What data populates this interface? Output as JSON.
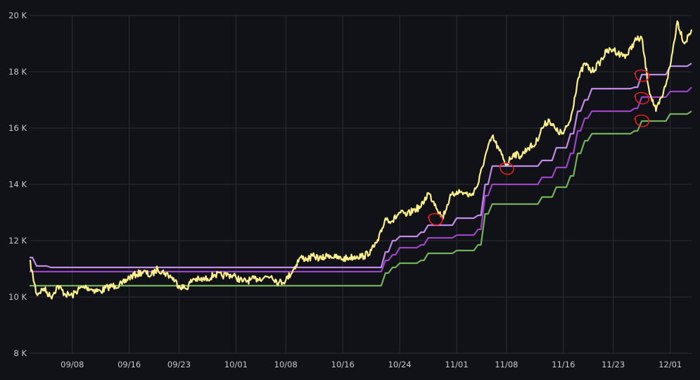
{
  "chart_data": {
    "type": "line",
    "title": "",
    "xlabel": "",
    "ylabel": "",
    "ylim": [
      8000,
      20000
    ],
    "y_ticks": [
      {
        "value": 8000,
        "label": "8 K"
      },
      {
        "value": 10000,
        "label": "10 K"
      },
      {
        "value": 12000,
        "label": "12 K"
      },
      {
        "value": 14000,
        "label": "14 K"
      },
      {
        "value": 16000,
        "label": "16 K"
      },
      {
        "value": 18000,
        "label": "18 K"
      },
      {
        "value": 20000,
        "label": "20 K"
      }
    ],
    "x_start": "09/02",
    "x_end": "12/04",
    "x_ticks": [
      "09/08",
      "09/16",
      "09/23",
      "10/01",
      "10/08",
      "10/16",
      "10/24",
      "11/01",
      "11/08",
      "11/16",
      "11/23",
      "12/01"
    ],
    "grid": true,
    "legend": "none",
    "colors": {
      "background": "#111217",
      "grid": "#2c2e33",
      "price": "#fbf08d",
      "upper_band": "#c08ae8",
      "middle_band": "#9a45c2",
      "lower_band": "#74b05c",
      "annotation": "#e02020"
    },
    "series": [
      {
        "role": "price",
        "color": "#fbf08d",
        "points": [
          [
            "09/02",
            11300
          ],
          [
            "09/03",
            10100
          ],
          [
            "09/04",
            10300
          ],
          [
            "09/05",
            10000
          ],
          [
            "09/06",
            10400
          ],
          [
            "09/07",
            10100
          ],
          [
            "09/08",
            10050
          ],
          [
            "09/09",
            10300
          ],
          [
            "09/10",
            10350
          ],
          [
            "09/11",
            10250
          ],
          [
            "09/12",
            10200
          ],
          [
            "09/13",
            10350
          ],
          [
            "09/14",
            10400
          ],
          [
            "09/15",
            10450
          ],
          [
            "09/16",
            10700
          ],
          [
            "09/17",
            10800
          ],
          [
            "09/18",
            10900
          ],
          [
            "09/19",
            10750
          ],
          [
            "09/20",
            11000
          ],
          [
            "09/21",
            10850
          ],
          [
            "09/22",
            10700
          ],
          [
            "09/23",
            10400
          ],
          [
            "09/24",
            10300
          ],
          [
            "09/25",
            10650
          ],
          [
            "09/26",
            10600
          ],
          [
            "09/27",
            10650
          ],
          [
            "09/28",
            10800
          ],
          [
            "09/29",
            10750
          ],
          [
            "09/30",
            10800
          ],
          [
            "10/01",
            10700
          ],
          [
            "10/02",
            10550
          ],
          [
            "10/03",
            10600
          ],
          [
            "10/04",
            10650
          ],
          [
            "10/05",
            10700
          ],
          [
            "10/06",
            10750
          ],
          [
            "10/07",
            10500
          ],
          [
            "10/08",
            10600
          ],
          [
            "10/09",
            10950
          ],
          [
            "10/10",
            11400
          ],
          [
            "10/11",
            11350
          ],
          [
            "10/12",
            11450
          ],
          [
            "10/13",
            11350
          ],
          [
            "10/14",
            11500
          ],
          [
            "10/15",
            11400
          ],
          [
            "10/16",
            11350
          ],
          [
            "10/17",
            11400
          ],
          [
            "10/18",
            11450
          ],
          [
            "10/19",
            11450
          ],
          [
            "10/20",
            11650
          ],
          [
            "10/21",
            12000
          ],
          [
            "10/22",
            12800
          ],
          [
            "10/23",
            12700
          ],
          [
            "10/24",
            13000
          ],
          [
            "10/25",
            12900
          ],
          [
            "10/26",
            13100
          ],
          [
            "10/27",
            13200
          ],
          [
            "10/28",
            13700
          ],
          [
            "10/29",
            13300
          ],
          [
            "10/30",
            12800
          ],
          [
            "10/31",
            13500
          ],
          [
            "11/01",
            13750
          ],
          [
            "11/02",
            13700
          ],
          [
            "11/03",
            13600
          ],
          [
            "11/04",
            14000
          ],
          [
            "11/05",
            15000
          ],
          [
            "11/06",
            15700
          ],
          [
            "11/07",
            15200
          ],
          [
            "11/08",
            14700
          ],
          [
            "11/09",
            15100
          ],
          [
            "11/10",
            15000
          ],
          [
            "11/11",
            15300
          ],
          [
            "11/12",
            15400
          ],
          [
            "11/13",
            16000
          ],
          [
            "11/14",
            16300
          ],
          [
            "11/15",
            15900
          ],
          [
            "11/16",
            15800
          ],
          [
            "11/17",
            16300
          ],
          [
            "11/18",
            17700
          ],
          [
            "11/19",
            18300
          ],
          [
            "11/20",
            18000
          ],
          [
            "11/21",
            18300
          ],
          [
            "11/22",
            18700
          ],
          [
            "11/23",
            18800
          ],
          [
            "11/24",
            18600
          ],
          [
            "11/25",
            18600
          ],
          [
            "11/26",
            19100
          ],
          [
            "11/27",
            19200
          ],
          [
            "11/28",
            17400
          ],
          [
            "11/29",
            16600
          ],
          [
            "11/30",
            17200
          ],
          [
            "12/01",
            18200
          ],
          [
            "12/02",
            19800
          ],
          [
            "12/03",
            19000
          ],
          [
            "12/04",
            19500
          ]
        ]
      },
      {
        "role": "upper_band",
        "color": "#c08ae8",
        "points": [
          [
            "09/02",
            11400
          ],
          [
            "09/03",
            11100
          ],
          [
            "09/05",
            11050
          ],
          [
            "10/21",
            11050
          ],
          [
            "10/22",
            11600
          ],
          [
            "10/23",
            12000
          ],
          [
            "10/24",
            12150
          ],
          [
            "10/27",
            12300
          ],
          [
            "10/28",
            12550
          ],
          [
            "11/01",
            12800
          ],
          [
            "11/04",
            12900
          ],
          [
            "11/05",
            14000
          ],
          [
            "11/06",
            14650
          ],
          [
            "11/13",
            14850
          ],
          [
            "11/15",
            15300
          ],
          [
            "11/17",
            15800
          ],
          [
            "11/18",
            16600
          ],
          [
            "11/19",
            17000
          ],
          [
            "11/20",
            17400
          ],
          [
            "11/26",
            17450
          ],
          [
            "11/27",
            17900
          ],
          [
            "12/01",
            18200
          ],
          [
            "12/04",
            18300
          ]
        ]
      },
      {
        "role": "middle_band",
        "color": "#9a45c2",
        "points": [
          [
            "09/02",
            10900
          ],
          [
            "10/21",
            10900
          ],
          [
            "10/22",
            11300
          ],
          [
            "10/23",
            11500
          ],
          [
            "10/24",
            11750
          ],
          [
            "10/27",
            11850
          ],
          [
            "10/28",
            12100
          ],
          [
            "11/01",
            12200
          ],
          [
            "11/04",
            12400
          ],
          [
            "11/05",
            13600
          ],
          [
            "11/06",
            14000
          ],
          [
            "11/13",
            14250
          ],
          [
            "11/15",
            14600
          ],
          [
            "11/17",
            15100
          ],
          [
            "11/18",
            15900
          ],
          [
            "11/19",
            16350
          ],
          [
            "11/20",
            16600
          ],
          [
            "11/26",
            16700
          ],
          [
            "11/27",
            17100
          ],
          [
            "12/01",
            17300
          ],
          [
            "12/04",
            17450
          ]
        ]
      },
      {
        "role": "lower_band",
        "color": "#74b05c",
        "points": [
          [
            "09/02",
            10400
          ],
          [
            "10/21",
            10400
          ],
          [
            "10/22",
            10850
          ],
          [
            "10/23",
            11050
          ],
          [
            "10/24",
            11200
          ],
          [
            "10/27",
            11300
          ],
          [
            "10/28",
            11550
          ],
          [
            "11/01",
            11650
          ],
          [
            "11/04",
            11850
          ],
          [
            "11/05",
            12950
          ],
          [
            "11/06",
            13300
          ],
          [
            "11/13",
            13550
          ],
          [
            "11/15",
            13900
          ],
          [
            "11/17",
            14300
          ],
          [
            "11/18",
            15100
          ],
          [
            "11/19",
            15550
          ],
          [
            "11/20",
            15800
          ],
          [
            "11/26",
            15900
          ],
          [
            "11/27",
            16250
          ],
          [
            "12/01",
            16500
          ],
          [
            "12/04",
            16600
          ]
        ]
      }
    ],
    "annotations": [
      {
        "shape": "circle",
        "x": "10/29",
        "y": 12750
      },
      {
        "shape": "circle",
        "x": "11/08",
        "y": 14550
      },
      {
        "shape": "circle",
        "x": "11/27",
        "y": 17850
      },
      {
        "shape": "circle",
        "x": "11/27",
        "y": 17050
      },
      {
        "shape": "circle",
        "x": "11/27",
        "y": 16250
      }
    ]
  }
}
